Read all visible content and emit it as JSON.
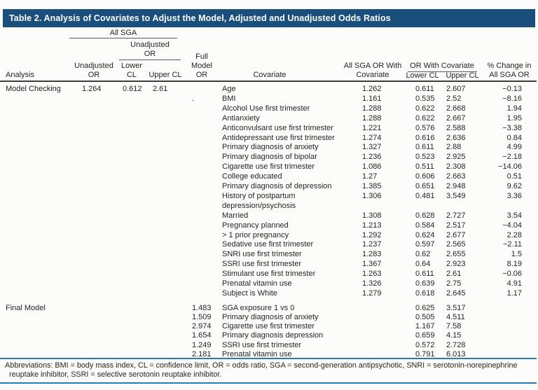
{
  "title": "Table 2. Analysis of Covariates to Adjust the Model, Adjusted and Unadjusted Odds Ratios",
  "colors": {
    "title_bar_bg": "#1a4e7d",
    "footer_rule_blue": "#2a7ab5",
    "header_rule_dark": "#3d3d3d",
    "text": "#242424"
  },
  "header": {
    "analysis": "Analysis",
    "all_sga_group": "All SGA",
    "unadjusted_or_group": "Unadjusted OR",
    "unadjusted_or": "Unadjusted OR",
    "lower_cl": "Lower CL",
    "upper_cl": "Upper CL",
    "full_model_or": "Full Model OR",
    "covariate": "Covariate",
    "all_sga_or_with_covariate": "All SGA OR With Covariate",
    "or_with_covariate": "OR With Covariate",
    "cov_lower_cl": "Lower CL",
    "cov_upper_cl": "Upper CL",
    "pct_change": "% Change in All SGA OR"
  },
  "table": {
    "sections": [
      {
        "analysis": "Model Checking",
        "unadjusted_or": "1.264",
        "lower_cl": "0.612",
        "upper_cl": "2.61",
        "rows": [
          {
            "covariate": "Age",
            "all_sga_or": "1.262",
            "lower_cl": "0.611",
            "upper_cl": "2.607",
            "pct_change": "−0.13"
          },
          {
            "covariate": "BMI",
            "full_model_or": ".",
            "all_sga_or": "1.161",
            "lower_cl": "0.535",
            "upper_cl": "2.52",
            "pct_change": "−8.16"
          },
          {
            "covariate": "Alcohol Use first trimester",
            "all_sga_or": "1.288",
            "lower_cl": "0.622",
            "upper_cl": "2.668",
            "pct_change": "1.94"
          },
          {
            "covariate": "Antianxiety",
            "all_sga_or": "1.288",
            "lower_cl": "0.622",
            "upper_cl": "2.667",
            "pct_change": "1.95"
          },
          {
            "covariate": "Anticonvulsant use first trimester",
            "all_sga_or": "1.221",
            "lower_cl": "0.576",
            "upper_cl": "2.588",
            "pct_change": "−3.38"
          },
          {
            "covariate": "Antidepressant use first trimester",
            "all_sga_or": "1.274",
            "lower_cl": "0.616",
            "upper_cl": "2.636",
            "pct_change": "0.84"
          },
          {
            "covariate": "Primary diagnosis of anxiety",
            "all_sga_or": "1.327",
            "lower_cl": "0.611",
            "upper_cl": "2.88",
            "pct_change": "4.99"
          },
          {
            "covariate": "Primary diagnosis of bipolar",
            "all_sga_or": "1.236",
            "lower_cl": "0.523",
            "upper_cl": "2.925",
            "pct_change": "−2.18"
          },
          {
            "covariate": "Cigarette use first trimester",
            "all_sga_or": "1.086",
            "lower_cl": "0.511",
            "upper_cl": "2.308",
            "pct_change": "−14.06"
          },
          {
            "covariate": "College educated",
            "all_sga_or": "1.27",
            "lower_cl": "0.606",
            "upper_cl": "2.663",
            "pct_change": "0.51"
          },
          {
            "covariate": "Primary diagnosis of depression",
            "all_sga_or": "1.385",
            "lower_cl": "0.651",
            "upper_cl": "2.948",
            "pct_change": "9.62"
          },
          {
            "covariate": "History of postpartum\ndepression/psychosis",
            "lines": 2,
            "all_sga_or": "1.306",
            "lower_cl": "0.481",
            "upper_cl": "3.549",
            "pct_change": "3.36"
          },
          {
            "covariate": "Married",
            "all_sga_or": "1.308",
            "lower_cl": "0.628",
            "upper_cl": "2.727",
            "pct_change": "3.54"
          },
          {
            "covariate": "Pregnancy planned",
            "all_sga_or": "1.213",
            "lower_cl": "0.584",
            "upper_cl": "2.517",
            "pct_change": "−4.04"
          },
          {
            "covariate": "> 1 prior pregnancy",
            "all_sga_or": "1.292",
            "lower_cl": "0.624",
            "upper_cl": "2.677",
            "pct_change": "2.28"
          },
          {
            "covariate": "Sedative use first trimester",
            "all_sga_or": "1.237",
            "lower_cl": "0.597",
            "upper_cl": "2.565",
            "pct_change": "−2.11"
          },
          {
            "covariate": "SNRI use first trimester",
            "all_sga_or": "1.283",
            "lower_cl": "0.62",
            "upper_cl": "2.655",
            "pct_change": "1.5"
          },
          {
            "covariate": "SSRI use first trimester",
            "all_sga_or": "1.367",
            "lower_cl": "0.64",
            "upper_cl": "2.923",
            "pct_change": "8.19"
          },
          {
            "covariate": "Stimulant use first trimester",
            "all_sga_or": "1.263",
            "lower_cl": "0.611",
            "upper_cl": "2.61",
            "pct_change": "−0.06"
          },
          {
            "covariate": "Prenatal vitamin use",
            "all_sga_or": "1.326",
            "lower_cl": "0.639",
            "upper_cl": "2.75",
            "pct_change": "4.91"
          },
          {
            "covariate": "Subject is White",
            "all_sga_or": "1.279",
            "lower_cl": "0.618",
            "upper_cl": "2.645",
            "pct_change": "1.17"
          }
        ]
      },
      {
        "analysis": "Final Model",
        "rows": [
          {
            "full_model_or": "1.483",
            "covariate": "SGA exposure 1 vs 0",
            "lower_cl": "0.625",
            "upper_cl": "3.517"
          },
          {
            "full_model_or": "1.509",
            "covariate": "Primary diagnosis of anxiety",
            "lower_cl": "0.505",
            "upper_cl": "4.511"
          },
          {
            "full_model_or": "2.974",
            "covariate": "Cigarette use first trimester",
            "lower_cl": "1.167",
            "upper_cl": "7.58"
          },
          {
            "full_model_or": "1.654",
            "covariate": "Primary diagnosis depression",
            "lower_cl": "0.659",
            "upper_cl": "4.15"
          },
          {
            "full_model_or": "1.249",
            "covariate": "SSRI use first trimester",
            "lower_cl": "0.572",
            "upper_cl": "2.728"
          },
          {
            "full_model_or": "2.181",
            "covariate": "Prenatal vitamin use",
            "lower_cl": "0.791",
            "upper_cl": "6.013"
          }
        ]
      }
    ]
  },
  "footnote": "Abbreviations: BMI = body mass index, CL = confidence limit, OR = odds ratio, SGA = second-generation antipsychotic, SNRI = serotonin-norepinephrine reuptake inhibitor, SSRI = selective serotonin reuptake inhibitor."
}
